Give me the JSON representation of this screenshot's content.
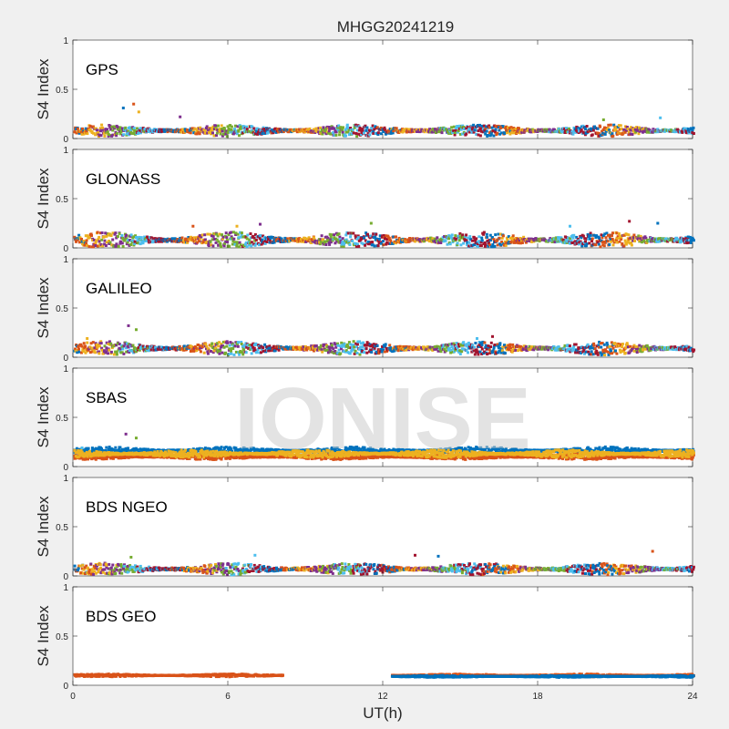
{
  "figure": {
    "title": "MHGG20241219",
    "xlabel": "UT(h)",
    "watermark": "IONISE"
  },
  "chart_data": {
    "type": "scatter",
    "ylabel": "S4 Index",
    "xlim": [
      0,
      24
    ],
    "ylim": [
      0,
      1
    ],
    "xticks": [
      0,
      6,
      12,
      18,
      24
    ],
    "yticks": [
      0,
      0.5,
      1
    ],
    "xtick_labels": [
      "0",
      "6",
      "12",
      "18",
      "24"
    ],
    "ytick_labels": [
      "0",
      "0.5",
      "1"
    ],
    "grid": false,
    "colors": [
      "#0072bd",
      "#d95319",
      "#edb120",
      "#7e2f8e",
      "#77ac30",
      "#4dbeee",
      "#a2142f"
    ],
    "panels": [
      {
        "label": "GPS",
        "segments": [
          {
            "x": [
              0,
              24
            ],
            "base": 0.08,
            "spread": 0.06
          }
        ],
        "spikes": [
          {
            "x": 1.9,
            "y": 0.31
          },
          {
            "x": 2.3,
            "y": 0.35
          },
          {
            "x": 2.5,
            "y": 0.27
          },
          {
            "x": 4.1,
            "y": 0.22
          },
          {
            "x": 20.5,
            "y": 0.19
          },
          {
            "x": 22.7,
            "y": 0.21
          }
        ]
      },
      {
        "label": "GLONASS",
        "segments": [
          {
            "x": [
              0,
              24
            ],
            "base": 0.08,
            "spread": 0.08
          }
        ],
        "spikes": [
          {
            "x": 4.6,
            "y": 0.22
          },
          {
            "x": 6.3,
            "y": 0.22
          },
          {
            "x": 7.2,
            "y": 0.24
          },
          {
            "x": 11.5,
            "y": 0.25
          },
          {
            "x": 19.2,
            "y": 0.22
          },
          {
            "x": 21.5,
            "y": 0.27
          },
          {
            "x": 22.6,
            "y": 0.25
          }
        ]
      },
      {
        "label": "GALILEO",
        "segments": [
          {
            "x": [
              0,
              24
            ],
            "base": 0.09,
            "spread": 0.07
          }
        ],
        "spikes": [
          {
            "x": 0.5,
            "y": 0.19
          },
          {
            "x": 2.1,
            "y": 0.32
          },
          {
            "x": 2.4,
            "y": 0.28
          },
          {
            "x": 15.6,
            "y": 0.19
          },
          {
            "x": 16.2,
            "y": 0.21
          }
        ]
      },
      {
        "label": "SBAS",
        "segments": [
          {
            "x": [
              0,
              24
            ],
            "base": 0.16,
            "spread": 0.04,
            "color": "#0072bd"
          },
          {
            "x": [
              0,
              24
            ],
            "base": 0.1,
            "spread": 0.03,
            "color": "#d95319"
          },
          {
            "x": [
              0,
              24
            ],
            "base": 0.13,
            "spread": 0.04,
            "color": "#edb120"
          }
        ],
        "spikes": [
          {
            "x": 2.0,
            "y": 0.33
          },
          {
            "x": 2.4,
            "y": 0.29
          },
          {
            "x": 0.3,
            "y": 0.19
          }
        ]
      },
      {
        "label": "BDS NGEO",
        "segments": [
          {
            "x": [
              0,
              24
            ],
            "base": 0.07,
            "spread": 0.06
          }
        ],
        "spikes": [
          {
            "x": 2.2,
            "y": 0.19
          },
          {
            "x": 7.0,
            "y": 0.21
          },
          {
            "x": 13.2,
            "y": 0.21
          },
          {
            "x": 14.1,
            "y": 0.2
          },
          {
            "x": 22.4,
            "y": 0.25
          }
        ]
      },
      {
        "label": "BDS GEO",
        "segments": [
          {
            "x": [
              0,
              8.1
            ],
            "base": 0.1,
            "spread": 0.015,
            "color": "#d95319"
          },
          {
            "x": [
              12.3,
              24
            ],
            "base": 0.1,
            "spread": 0.015,
            "color": "#d95319"
          },
          {
            "x": [
              12.3,
              24
            ],
            "base": 0.09,
            "spread": 0.01,
            "color": "#0072bd"
          }
        ],
        "spikes": []
      }
    ]
  }
}
